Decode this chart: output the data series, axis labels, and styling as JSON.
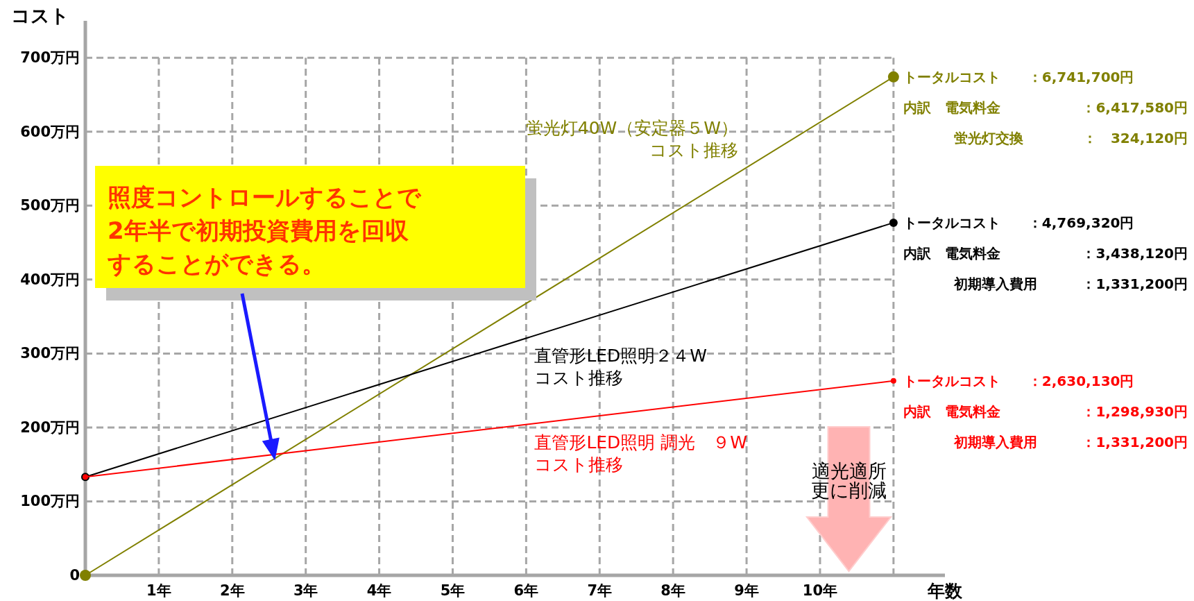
{
  "chart_data": {
    "type": "line",
    "ylabel": "コスト",
    "xlabel": "年数",
    "x": [
      0,
      11
    ],
    "series": [
      {
        "name": "蛍光灯40W（安定器５W）コスト推移",
        "color": "#808000",
        "values": [
          0,
          674.17
        ]
      },
      {
        "name": "直管形LED照明２４Wコスト推移",
        "color": "#000000",
        "values": [
          133.12,
          476.932
        ]
      },
      {
        "name": "直管形LED照明 調光　９Wコスト推移",
        "color": "#ff0000",
        "values": [
          133.12,
          263.013
        ]
      }
    ],
    "xlim": [
      0,
      11.7
    ],
    "ylim": [
      0,
      750
    ],
    "xticks": [
      {
        "value": 0,
        "label": null
      },
      {
        "value": 1,
        "label": "1年"
      },
      {
        "value": 2,
        "label": "2年"
      },
      {
        "value": 3,
        "label": "3年"
      },
      {
        "value": 4,
        "label": "4年"
      },
      {
        "value": 5,
        "label": "5年"
      },
      {
        "value": 6,
        "label": "6年"
      },
      {
        "value": 7,
        "label": "7年"
      },
      {
        "value": 8,
        "label": "8年"
      },
      {
        "value": 9,
        "label": "9年"
      },
      {
        "value": 10,
        "label": "10年"
      },
      {
        "value": 11,
        "label": null
      }
    ],
    "yticks": [
      0,
      {
        "value": 100,
        "label": "100万円"
      },
      {
        "value": 200,
        "label": "200万円"
      },
      {
        "value": 300,
        "label": "300万円"
      },
      {
        "value": 400,
        "label": "400万円"
      },
      {
        "value": 500,
        "label": "500万円"
      },
      {
        "value": 600,
        "label": "600万円"
      },
      {
        "value": 700,
        "label": "700万円"
      }
    ],
    "grid": true,
    "marker": "circle",
    "line_style": "solid",
    "annotations": [
      "照度コントロールすることで2年半で初期投資費用を回収することができる。",
      "適光適所更に削減",
      "トータルコスト　　：6,741,700円",
      "内訳　電気料金　　：6,417,580円",
      "蛍光灯交換　：　324,120円",
      "トータルコスト　　：4,769,320円",
      "内訳　電気料金　　：3,438,120円",
      "初期導入費用：1,331,200円",
      "トータルコスト　　：2,630,130円",
      "内訳　電気料金　　：1,298,930円",
      "初期導入費用：1,331,200円"
    ]
  }
}
